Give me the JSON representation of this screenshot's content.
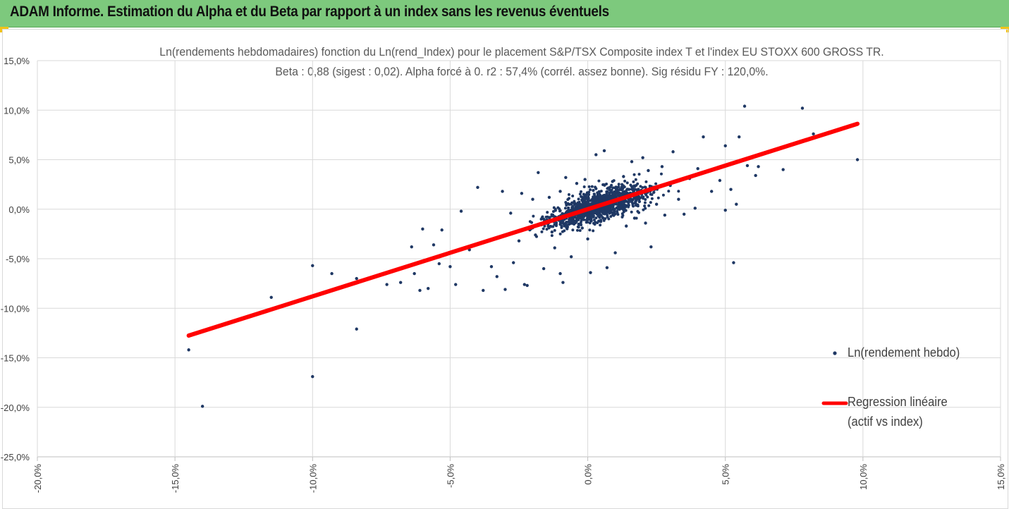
{
  "header": {
    "title": "ADAM Informe. Estimation du Alpha et du Beta par rapport à un index sans les revenus éventuels",
    "colors": {
      "background": "#7dc97d",
      "corner_accent": "#f2c318"
    }
  },
  "chart_data": {
    "type": "scatter",
    "title": "Ln(rendements hebdomadaires) fonction du Ln(rend_Index) pour le placement S&P/TSX Composite index T et l'index EU STOXX 600 GROSS TR.",
    "subtitle": "Beta : 0,88 (sigest : 0,02).  Alpha forcé à 0. r2 : 57,4% (corrél. assez bonne). Sig résidu FY : 120,0%.",
    "xlabel": "",
    "ylabel": "",
    "xlim": [
      -20,
      15
    ],
    "ylim": [
      -25,
      15
    ],
    "x_ticks": [
      "-20,0%",
      "-15,0%",
      "-10,0%",
      "-5,0%",
      "0,0%",
      "5,0%",
      "10,0%",
      "15,0%"
    ],
    "y_ticks": [
      "15,0%",
      "10,0%",
      "5,0%",
      "0,0%",
      "-5,0%",
      "-10,0%",
      "-15,0%",
      "-20,0%",
      "-25,0%"
    ],
    "grid": "horizontal",
    "legend_position": "right",
    "series": [
      {
        "name": "Ln(rendement hebdo)",
        "kind": "scatter",
        "color": "#1f3864",
        "points": [
          [
            -14.5,
            -14.2
          ],
          [
            -14.0,
            -19.9
          ],
          [
            -11.5,
            -8.9
          ],
          [
            -10.0,
            -5.7
          ],
          [
            -10.0,
            -16.9
          ],
          [
            -9.3,
            -6.5
          ],
          [
            -8.4,
            -12.1
          ],
          [
            -8.4,
            -7.0
          ],
          [
            -7.5,
            -6.6
          ],
          [
            -7.3,
            -7.6
          ],
          [
            -6.8,
            -7.4
          ],
          [
            -6.4,
            -3.8
          ],
          [
            -6.3,
            -6.5
          ],
          [
            -6.1,
            -8.2
          ],
          [
            -6.0,
            -2.0
          ],
          [
            -5.8,
            -8.0
          ],
          [
            -5.6,
            -3.6
          ],
          [
            -5.4,
            -5.5
          ],
          [
            -5.3,
            -2.1
          ],
          [
            -5.0,
            -5.8
          ],
          [
            -4.8,
            -7.6
          ],
          [
            -4.6,
            -0.2
          ],
          [
            -4.3,
            -4.1
          ],
          [
            -4.0,
            2.2
          ],
          [
            -3.8,
            -8.2
          ],
          [
            -3.5,
            -5.8
          ],
          [
            -3.3,
            -6.8
          ],
          [
            -3.1,
            1.8
          ],
          [
            -3.0,
            -8.1
          ],
          [
            -2.8,
            -0.4
          ],
          [
            -2.7,
            -5.4
          ],
          [
            -2.5,
            -3.2
          ],
          [
            -2.4,
            1.6
          ],
          [
            -2.3,
            -7.6
          ],
          [
            -2.2,
            -7.7
          ],
          [
            -2.0,
            1.0
          ],
          [
            -1.9,
            -2.6
          ],
          [
            -1.8,
            3.7
          ],
          [
            -1.6,
            -6.0
          ],
          [
            -1.5,
            -1.1
          ],
          [
            -1.4,
            1.2
          ],
          [
            -1.3,
            -2.3
          ],
          [
            -1.2,
            -3.9
          ],
          [
            -1.0,
            -6.5
          ],
          [
            -1.0,
            1.8
          ],
          [
            -0.9,
            -7.4
          ],
          [
            -0.8,
            3.2
          ],
          [
            -0.7,
            -0.3
          ],
          [
            -0.6,
            -4.8
          ],
          [
            -0.5,
            -1.5
          ],
          [
            -0.4,
            2.6
          ],
          [
            -0.3,
            -0.8
          ],
          [
            -0.2,
            -1.9
          ],
          [
            -0.1,
            3.0
          ],
          [
            0.0,
            -3.0
          ],
          [
            0.0,
            0.6
          ],
          [
            0.1,
            -6.4
          ],
          [
            0.2,
            1.9
          ],
          [
            0.3,
            5.5
          ],
          [
            0.4,
            -1.2
          ],
          [
            0.5,
            0.2
          ],
          [
            0.6,
            5.9
          ],
          [
            0.7,
            -5.9
          ],
          [
            0.8,
            -0.4
          ],
          [
            0.9,
            2.8
          ],
          [
            1.0,
            -4.4
          ],
          [
            1.1,
            1.4
          ],
          [
            1.2,
            0.6
          ],
          [
            1.3,
            3.3
          ],
          [
            1.4,
            -1.7
          ],
          [
            1.5,
            2.0
          ],
          [
            1.6,
            4.8
          ],
          [
            1.7,
            -0.9
          ],
          [
            1.8,
            1.1
          ],
          [
            2.0,
            5.2
          ],
          [
            2.1,
            -1.4
          ],
          [
            2.2,
            3.9
          ],
          [
            2.3,
            -3.8
          ],
          [
            2.4,
            1.7
          ],
          [
            2.5,
            0.5
          ],
          [
            2.7,
            4.3
          ],
          [
            2.8,
            -0.6
          ],
          [
            3.0,
            2.4
          ],
          [
            3.1,
            5.8
          ],
          [
            3.3,
            1.0
          ],
          [
            3.5,
            -0.5
          ],
          [
            3.7,
            3.1
          ],
          [
            3.9,
            0.1
          ],
          [
            4.0,
            4.1
          ],
          [
            4.2,
            7.3
          ],
          [
            4.5,
            1.8
          ],
          [
            4.8,
            2.9
          ],
          [
            5.0,
            6.4
          ],
          [
            5.0,
            -0.1
          ],
          [
            5.2,
            2.0
          ],
          [
            5.3,
            -5.4
          ],
          [
            5.4,
            0.5
          ],
          [
            5.5,
            7.3
          ],
          [
            5.7,
            10.4
          ],
          [
            5.8,
            4.4
          ],
          [
            6.1,
            3.4
          ],
          [
            6.2,
            4.3
          ],
          [
            7.1,
            4.0
          ],
          [
            7.8,
            10.2
          ],
          [
            8.2,
            7.6
          ],
          [
            9.8,
            5.0
          ]
        ]
      },
      {
        "name": "Regression linéaire (actif vs index)",
        "kind": "line",
        "color": "#ff0000",
        "beta": 0.88,
        "alpha": 0,
        "x_range": [
          -14.5,
          9.8
        ]
      }
    ],
    "legend_entries": {
      "scatter_label": "Ln(rendement hebdo)",
      "line_label_1": "Regression linéaire",
      "line_label_2": "(actif vs index)"
    }
  }
}
